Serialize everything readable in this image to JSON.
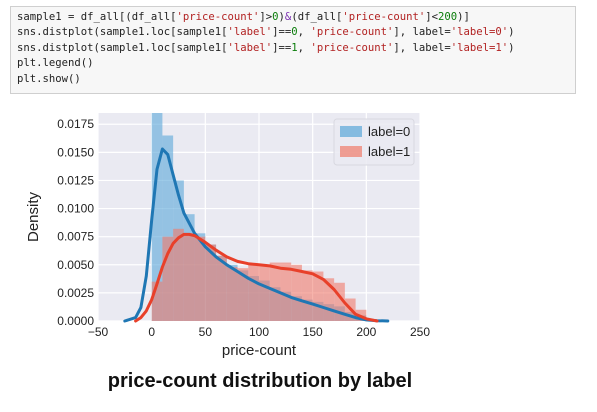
{
  "code_cell": {
    "lines": [
      [
        {
          "t": "sample1 = df_all[(df_all[",
          "c": ""
        },
        {
          "t": "'price-count'",
          "c": "str"
        },
        {
          "t": "]>",
          "c": ""
        },
        {
          "t": "0",
          "c": "num"
        },
        {
          "t": ")",
          "c": ""
        },
        {
          "t": "&",
          "c": "op"
        },
        {
          "t": "(df_all[",
          "c": ""
        },
        {
          "t": "'price-count'",
          "c": "str"
        },
        {
          "t": "]<",
          "c": ""
        },
        {
          "t": "200",
          "c": "num"
        },
        {
          "t": ")]",
          "c": ""
        }
      ],
      [
        {
          "t": "sns.distplot(sample1.loc[sample1[",
          "c": ""
        },
        {
          "t": "'label'",
          "c": "str"
        },
        {
          "t": "]==",
          "c": ""
        },
        {
          "t": "0",
          "c": "num"
        },
        {
          "t": ", ",
          "c": ""
        },
        {
          "t": "'price-count'",
          "c": "str"
        },
        {
          "t": "], label=",
          "c": ""
        },
        {
          "t": "'label=0'",
          "c": "str"
        },
        {
          "t": ")",
          "c": ""
        }
      ],
      [
        {
          "t": "sns.distplot(sample1.loc[sample1[",
          "c": ""
        },
        {
          "t": "'label'",
          "c": "str"
        },
        {
          "t": "]==",
          "c": ""
        },
        {
          "t": "1",
          "c": "num"
        },
        {
          "t": ", ",
          "c": ""
        },
        {
          "t": "'price-count'",
          "c": "str"
        },
        {
          "t": "], label=",
          "c": ""
        },
        {
          "t": "'label=1'",
          "c": "str"
        },
        {
          "t": ")",
          "c": ""
        }
      ],
      [
        {
          "t": "plt.legend()",
          "c": ""
        }
      ],
      [
        {
          "t": "plt.show()",
          "c": ""
        }
      ]
    ]
  },
  "caption": "price-count distribution by label",
  "colors": {
    "label0": "#5aa7d8",
    "label1": "#f07a6a",
    "line0": "#1f77b4",
    "line1": "#e8402a",
    "background": "#eaeaf2",
    "grid": "#ffffff"
  },
  "chart_data": {
    "type": "bar",
    "xlabel": "price-count",
    "ylabel": "Density",
    "xlim": [
      -50,
      250
    ],
    "ylim": [
      0,
      0.0185
    ],
    "x_ticks": [
      -50,
      0,
      50,
      100,
      150,
      200,
      250
    ],
    "x_tick_labels": [
      "−50",
      "0",
      "50",
      "100",
      "150",
      "200",
      "250"
    ],
    "y_ticks": [
      0,
      0.0025,
      0.005,
      0.0075,
      0.01,
      0.0125,
      0.015,
      0.0175
    ],
    "y_tick_labels": [
      "0.0000",
      "0.0025",
      "0.0050",
      "0.0075",
      "0.0100",
      "0.0125",
      "0.0150",
      "0.0175"
    ],
    "grid": true,
    "legend_position": "top-right",
    "series": [
      {
        "name": "label=0",
        "histogram": {
          "bin_edges": [
            0,
            10,
            20,
            30,
            40,
            50,
            60,
            70,
            80,
            90,
            100,
            110,
            120,
            130,
            140,
            150,
            160,
            170,
            180,
            190,
            200
          ],
          "density": [
            0.0185,
            0.0165,
            0.0125,
            0.0095,
            0.0078,
            0.0068,
            0.0058,
            0.005,
            0.0045,
            0.004,
            0.0036,
            0.003,
            0.0026,
            0.0022,
            0.0019,
            0.0017,
            0.0015,
            0.0013,
            0.0008,
            0.0005
          ]
        },
        "kde": {
          "x": [
            -25,
            -15,
            -10,
            -5,
            0,
            5,
            10,
            15,
            20,
            25,
            30,
            40,
            50,
            60,
            70,
            80,
            90,
            100,
            110,
            120,
            130,
            140,
            150,
            160,
            170,
            180,
            190,
            200,
            210,
            220
          ],
          "y": [
            0.0,
            0.0003,
            0.0012,
            0.004,
            0.009,
            0.0135,
            0.0153,
            0.0148,
            0.013,
            0.0112,
            0.0096,
            0.0078,
            0.0066,
            0.0057,
            0.005,
            0.0044,
            0.0038,
            0.0033,
            0.0029,
            0.0025,
            0.0021,
            0.0018,
            0.0015,
            0.0012,
            0.0009,
            0.0006,
            0.0003,
            0.0001,
            3e-05,
            0.0
          ]
        }
      },
      {
        "name": "label=1",
        "histogram": {
          "bin_edges": [
            0,
            10,
            20,
            30,
            40,
            50,
            60,
            70,
            80,
            90,
            100,
            110,
            120,
            130,
            140,
            150,
            160,
            170,
            180,
            190,
            200
          ],
          "density": [
            0.0035,
            0.0075,
            0.0082,
            0.0078,
            0.0075,
            0.0068,
            0.0058,
            0.0048,
            0.0047,
            0.005,
            0.005,
            0.0052,
            0.0052,
            0.005,
            0.0045,
            0.0044,
            0.0038,
            0.0034,
            0.002,
            0.001
          ]
        },
        "kde": {
          "x": [
            -15,
            -10,
            -5,
            0,
            5,
            10,
            15,
            20,
            25,
            30,
            35,
            40,
            50,
            60,
            70,
            80,
            90,
            100,
            110,
            120,
            130,
            140,
            150,
            160,
            170,
            180,
            190,
            200,
            210
          ],
          "y": [
            0.0,
            0.0003,
            0.0009,
            0.0019,
            0.0033,
            0.0048,
            0.006,
            0.0069,
            0.0074,
            0.0077,
            0.0077,
            0.0076,
            0.007,
            0.0063,
            0.0057,
            0.0053,
            0.0051,
            0.005,
            0.0049,
            0.0047,
            0.0046,
            0.0044,
            0.0042,
            0.0037,
            0.0028,
            0.0016,
            0.0006,
            0.0002,
            0.0
          ]
        }
      }
    ]
  }
}
